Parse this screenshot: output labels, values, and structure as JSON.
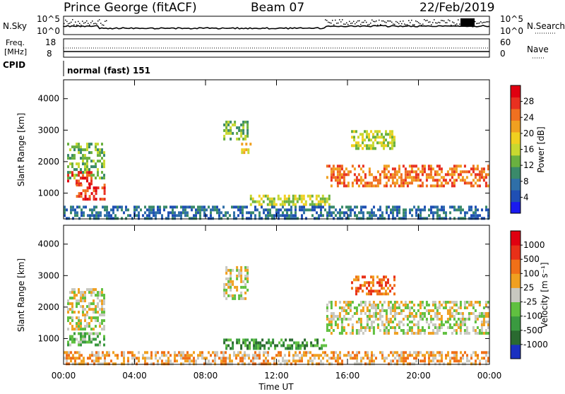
{
  "header": {
    "station": "Prince George (fitACF)",
    "beam": "Beam 07",
    "date": "22/Feb/2019"
  },
  "panel_labels": {
    "nsky": "N.Sky",
    "nsky_hi": "10^5",
    "nsky_lo": "10^0",
    "nsearch": "N.Search",
    "nsearch_hi": "10^5",
    "nsearch_lo": "10^0",
    "freq": "Freq.",
    "freq_unit": "[MHz]",
    "freq_hi": "18",
    "freq_lo": "8",
    "nave": "Nave",
    "nave_hi": "60",
    "nave_lo": "0",
    "cpid": "CPID",
    "cpid_value": "normal (fast) 151"
  },
  "chart_data": [
    {
      "type": "heatmap",
      "title": "",
      "xlabel": "Time UT",
      "ylabel": "Slant Range [km]",
      "x_ticks": [
        "00:00",
        "04:00",
        "08:00",
        "12:00",
        "16:00",
        "20:00",
        "00:00"
      ],
      "y_ticks": [
        1000,
        2000,
        3000,
        4000
      ],
      "xlim_hours": [
        0,
        24
      ],
      "ylim_km": [
        180,
        4600
      ],
      "colorbar": {
        "label": "Power [dB]",
        "ticks": [
          "4",
          "8",
          "12",
          "16",
          "20",
          "24",
          "28"
        ],
        "colors": [
          "#1a1af0",
          "#1f4fb4",
          "#2f6fa8",
          "#3a8a6a",
          "#6ab040",
          "#c8d830",
          "#f0d020",
          "#f0a020",
          "#f07020",
          "#e83020",
          "#e00010"
        ]
      },
      "regions": [
        {
          "t0": 0.2,
          "t1": 2.3,
          "r0": 1500,
          "r1": 2600,
          "level": 4
        },
        {
          "t0": 0.2,
          "t1": 1.6,
          "r0": 1300,
          "r1": 1700,
          "level": 9
        },
        {
          "t0": 0.7,
          "t1": 2.3,
          "r0": 800,
          "r1": 1300,
          "level": 9
        },
        {
          "t0": 9.0,
          "t1": 10.4,
          "r0": 2700,
          "r1": 3300,
          "level": 4
        },
        {
          "t0": 10.0,
          "t1": 10.5,
          "r0": 2300,
          "r1": 2600,
          "level": 6
        },
        {
          "t0": 10.5,
          "t1": 15.0,
          "r0": 620,
          "r1": 950,
          "level": 5
        },
        {
          "t0": 14.8,
          "t1": 23.9,
          "r0": 1200,
          "r1": 1900,
          "level": 8
        },
        {
          "t0": 16.2,
          "t1": 18.6,
          "r0": 2400,
          "r1": 3000,
          "level": 5
        },
        {
          "t0": 0.0,
          "t1": 24.0,
          "r0": 200,
          "r1": 600,
          "level": 2
        }
      ]
    },
    {
      "type": "heatmap",
      "title": "",
      "xlabel": "Time UT",
      "ylabel": "Slant Range [km]",
      "x_ticks": [
        "00:00",
        "04:00",
        "08:00",
        "12:00",
        "16:00",
        "20:00",
        "00:00"
      ],
      "y_ticks": [
        1000,
        2000,
        3000,
        4000
      ],
      "xlim_hours": [
        0,
        24
      ],
      "ylim_km": [
        180,
        4600
      ],
      "colorbar": {
        "label": "Velocity [m s⁻¹]",
        "ticks": [
          "1000",
          "500",
          "100",
          "25",
          "-25",
          "-100",
          "-500",
          "-1000"
        ],
        "colors": [
          "#1a30c0",
          "#2a6a30",
          "#3a9a40",
          "#60c040",
          "#c8c8c0",
          "#f0a020",
          "#f07018",
          "#e83018",
          "#e00010"
        ]
      },
      "regions": [
        {
          "t0": 0.2,
          "t1": 2.3,
          "r0": 1300,
          "r1": 2600,
          "level": 4
        },
        {
          "t0": 0.2,
          "t1": 2.3,
          "r0": 800,
          "r1": 1200,
          "level": 3
        },
        {
          "t0": 9.0,
          "t1": 10.4,
          "r0": 2300,
          "r1": 3300,
          "level": 4
        },
        {
          "t0": 9.0,
          "t1": 14.8,
          "r0": 700,
          "r1": 1000,
          "level": 2
        },
        {
          "t0": 14.8,
          "t1": 23.9,
          "r0": 1200,
          "r1": 2200,
          "level": 4
        },
        {
          "t0": 16.2,
          "t1": 18.6,
          "r0": 2400,
          "r1": 3000,
          "level": 6
        },
        {
          "t0": 0.0,
          "t1": 24.0,
          "r0": 200,
          "r1": 600,
          "level": 5
        }
      ]
    }
  ],
  "xlabel": "Time UT"
}
